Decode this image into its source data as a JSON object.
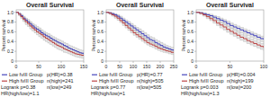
{
  "chart_data": [
    {
      "type": "step",
      "title": "Overall Survival",
      "ylabel": "Percent survival",
      "xlim": [
        0,
        150
      ],
      "xticks": [
        0,
        50,
        100,
        150
      ],
      "ylim": [
        0,
        1.05
      ],
      "yticks": [
        0,
        0.2,
        0.4,
        0.6,
        0.8,
        {
          "value": 1.0,
          "label": "1.0"
        }
      ],
      "legend": "bottom",
      "annotations": [
        "Logrank p=0.38",
        "HR(high/low)=1.1",
        "p(HR)=0.38",
        "n(high)=241",
        "n(low)=249"
      ],
      "x": [
        0,
        5,
        10,
        15,
        20,
        25,
        30,
        35,
        40,
        45,
        50,
        55,
        60,
        65,
        70,
        75,
        80,
        85,
        90,
        95,
        100,
        105,
        110,
        115,
        120,
        125,
        130,
        135,
        140,
        145,
        150
      ],
      "series": [
        {
          "name": "Low fvIII Group",
          "color": "#4444bb",
          "values": [
            1.0,
            0.97,
            0.93,
            0.88,
            0.84,
            0.8,
            0.76,
            0.72,
            0.68,
            0.65,
            0.62,
            0.58,
            0.55,
            0.52,
            0.5,
            0.47,
            0.44,
            0.42,
            0.39,
            0.37,
            0.35,
            0.32,
            0.3,
            0.27,
            0.25,
            0.23,
            0.21,
            0.19,
            0.17,
            0.16,
            0.14
          ],
          "ci_upper": [
            1.0,
            0.99,
            0.96,
            0.92,
            0.88,
            0.85,
            0.81,
            0.77,
            0.74,
            0.71,
            0.68,
            0.64,
            0.61,
            0.58,
            0.56,
            0.53,
            0.5,
            0.48,
            0.45,
            0.43,
            0.41,
            0.38,
            0.36,
            0.33,
            0.31,
            0.29,
            0.27,
            0.25,
            0.23,
            0.22,
            0.2
          ],
          "ci_lower": [
            1.0,
            0.95,
            0.9,
            0.84,
            0.79,
            0.75,
            0.71,
            0.67,
            0.63,
            0.59,
            0.56,
            0.52,
            0.49,
            0.46,
            0.44,
            0.41,
            0.38,
            0.36,
            0.33,
            0.31,
            0.29,
            0.26,
            0.24,
            0.21,
            0.19,
            0.17,
            0.15,
            0.13,
            0.11,
            0.1,
            0.08
          ]
        },
        {
          "name": "High fvIII Group",
          "color": "#bb4444",
          "values": [
            1.0,
            0.96,
            0.91,
            0.86,
            0.81,
            0.77,
            0.72,
            0.68,
            0.64,
            0.6,
            0.57,
            0.54,
            0.5,
            0.47,
            0.44,
            0.41,
            0.38,
            0.35,
            0.32,
            0.3,
            0.28,
            0.25,
            0.23,
            0.21,
            0.19,
            0.17,
            0.15,
            0.14,
            0.13,
            0.12,
            0.11
          ],
          "ci_upper": [
            1.0,
            0.98,
            0.94,
            0.9,
            0.86,
            0.82,
            0.78,
            0.74,
            0.7,
            0.67,
            0.64,
            0.6,
            0.57,
            0.54,
            0.51,
            0.48,
            0.45,
            0.42,
            0.39,
            0.37,
            0.34,
            0.32,
            0.29,
            0.27,
            0.25,
            0.23,
            0.21,
            0.2,
            0.18,
            0.17,
            0.16
          ],
          "ci_lower": [
            1.0,
            0.93,
            0.87,
            0.81,
            0.75,
            0.71,
            0.66,
            0.62,
            0.58,
            0.54,
            0.5,
            0.47,
            0.43,
            0.4,
            0.37,
            0.34,
            0.31,
            0.28,
            0.25,
            0.23,
            0.21,
            0.18,
            0.17,
            0.15,
            0.13,
            0.11,
            0.09,
            0.08,
            0.07,
            0.06,
            0.05
          ]
        }
      ]
    },
    {
      "type": "step",
      "title": "Overall Survival",
      "ylabel": "Percent survival",
      "xlim": [
        0,
        250
      ],
      "xticks": [
        0,
        50,
        100,
        150,
        200,
        250
      ],
      "ylim": [
        0,
        1.05
      ],
      "yticks": [
        0,
        0.2,
        0.4,
        0.6,
        0.8,
        {
          "value": 1.0,
          "label": "1.0"
        }
      ],
      "legend": "bottom",
      "annotations": [
        "Logrank p=0.77",
        "HR(high/low)=1",
        "p(HR)=0.77",
        "n(high)=505",
        "n(low)=505"
      ],
      "x": [
        0,
        10,
        20,
        30,
        40,
        50,
        60,
        70,
        80,
        90,
        100,
        110,
        120,
        130,
        140,
        150,
        160,
        170,
        180,
        190,
        200,
        210,
        220,
        230,
        240,
        250
      ],
      "series": [
        {
          "name": "Low fvIII Group",
          "color": "#4444bb",
          "values": [
            1.0,
            0.99,
            0.97,
            0.95,
            0.92,
            0.88,
            0.84,
            0.8,
            0.76,
            0.72,
            0.68,
            0.64,
            0.6,
            0.56,
            0.52,
            0.48,
            0.44,
            0.42,
            0.38,
            0.35,
            0.32,
            0.29,
            0.27,
            0.25,
            0.23,
            0.21
          ],
          "ci_upper": [
            1.0,
            1.0,
            0.99,
            0.97,
            0.95,
            0.92,
            0.88,
            0.84,
            0.81,
            0.77,
            0.73,
            0.69,
            0.66,
            0.62,
            0.58,
            0.54,
            0.5,
            0.48,
            0.44,
            0.41,
            0.38,
            0.35,
            0.32,
            0.3,
            0.28,
            0.26
          ],
          "ci_lower": [
            1.0,
            0.97,
            0.95,
            0.92,
            0.89,
            0.84,
            0.8,
            0.75,
            0.71,
            0.67,
            0.62,
            0.58,
            0.54,
            0.5,
            0.46,
            0.42,
            0.38,
            0.36,
            0.32,
            0.29,
            0.26,
            0.23,
            0.21,
            0.19,
            0.17,
            0.15
          ]
        },
        {
          "name": "High fvIII Group",
          "color": "#bb4444",
          "values": [
            1.0,
            0.98,
            0.95,
            0.92,
            0.88,
            0.83,
            0.78,
            0.73,
            0.68,
            0.63,
            0.58,
            0.54,
            0.5,
            0.46,
            0.42,
            0.38,
            0.35,
            0.33,
            0.3,
            0.27,
            0.25,
            0.23,
            0.21,
            0.2,
            0.18,
            0.17
          ],
          "ci_upper": [
            1.0,
            0.99,
            0.97,
            0.95,
            0.91,
            0.87,
            0.82,
            0.77,
            0.73,
            0.68,
            0.63,
            0.59,
            0.55,
            0.51,
            0.47,
            0.43,
            0.4,
            0.38,
            0.35,
            0.32,
            0.29,
            0.27,
            0.25,
            0.24,
            0.22,
            0.21
          ],
          "ci_lower": [
            1.0,
            0.96,
            0.92,
            0.88,
            0.84,
            0.79,
            0.73,
            0.68,
            0.63,
            0.58,
            0.53,
            0.49,
            0.45,
            0.41,
            0.37,
            0.33,
            0.3,
            0.28,
            0.25,
            0.22,
            0.2,
            0.18,
            0.17,
            0.15,
            0.14,
            0.12
          ]
        }
      ]
    },
    {
      "type": "step",
      "title": "Overall Survival",
      "ylabel": "Percent survival",
      "xlim": [
        0,
        100
      ],
      "xticks": [
        0,
        50,
        100
      ],
      "ylim": [
        0,
        1.05
      ],
      "yticks": [
        0,
        0.2,
        0.4,
        0.6,
        0.8,
        {
          "value": 1.0,
          "label": "1.0"
        }
      ],
      "legend": "bottom",
      "annotations": [
        "Logrank p=0.003",
        "HR(high/low)=1.3",
        "p(HR)=0.004",
        "n(high)=199",
        "n(low)=200"
      ],
      "x": [
        0,
        5,
        10,
        15,
        20,
        25,
        30,
        35,
        40,
        45,
        50,
        55,
        60,
        65,
        70,
        75,
        80,
        85,
        90,
        95,
        100
      ],
      "series": [
        {
          "name": "Low fvIII Group",
          "color": "#4444bb",
          "values": [
            1.0,
            0.99,
            0.97,
            0.95,
            0.93,
            0.9,
            0.87,
            0.84,
            0.81,
            0.77,
            0.73,
            0.7,
            0.67,
            0.64,
            0.61,
            0.58,
            0.55,
            0.52,
            0.49,
            0.46,
            0.44
          ],
          "ci_upper": [
            1.0,
            1.0,
            0.99,
            0.97,
            0.96,
            0.93,
            0.91,
            0.88,
            0.85,
            0.82,
            0.78,
            0.75,
            0.72,
            0.69,
            0.66,
            0.63,
            0.6,
            0.57,
            0.54,
            0.51,
            0.49
          ],
          "ci_lower": [
            1.0,
            0.97,
            0.95,
            0.92,
            0.89,
            0.86,
            0.83,
            0.79,
            0.76,
            0.72,
            0.68,
            0.65,
            0.61,
            0.58,
            0.55,
            0.52,
            0.49,
            0.46,
            0.43,
            0.4,
            0.38
          ]
        },
        {
          "name": "High fvIII Group",
          "color": "#bb4444",
          "values": [
            1.0,
            0.98,
            0.95,
            0.91,
            0.87,
            0.83,
            0.78,
            0.74,
            0.7,
            0.65,
            0.61,
            0.57,
            0.53,
            0.49,
            0.46,
            0.42,
            0.39,
            0.36,
            0.33,
            0.3,
            0.27
          ],
          "ci_upper": [
            1.0,
            0.99,
            0.97,
            0.94,
            0.9,
            0.87,
            0.83,
            0.79,
            0.75,
            0.71,
            0.67,
            0.63,
            0.59,
            0.55,
            0.52,
            0.48,
            0.45,
            0.42,
            0.39,
            0.36,
            0.33
          ],
          "ci_lower": [
            1.0,
            0.96,
            0.92,
            0.87,
            0.83,
            0.78,
            0.73,
            0.68,
            0.64,
            0.59,
            0.55,
            0.51,
            0.47,
            0.43,
            0.4,
            0.36,
            0.33,
            0.3,
            0.27,
            0.24,
            0.21
          ]
        }
      ]
    }
  ]
}
